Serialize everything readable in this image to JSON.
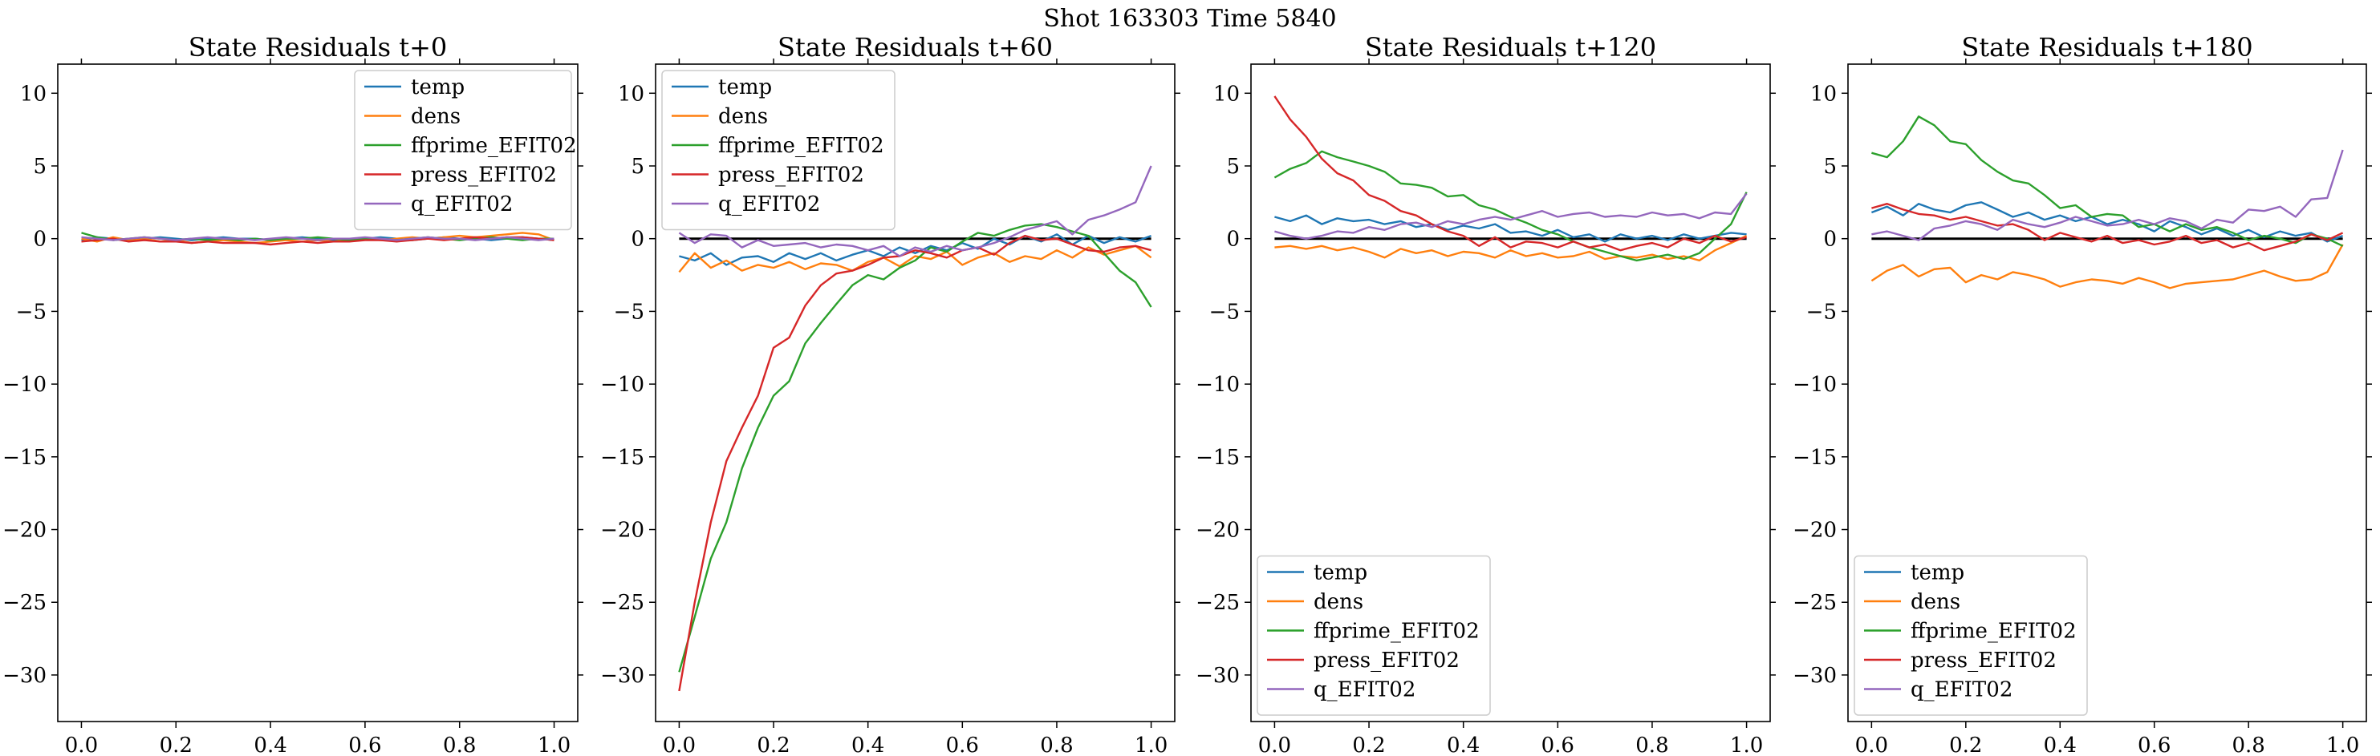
{
  "figure": {
    "title": "Shot 163303   Time 5840"
  },
  "colors": {
    "temp": "#1f77b4",
    "dens": "#ff7f0e",
    "ffprime_EFIT02": "#2ca02c",
    "press_EFIT02": "#d62728",
    "q_EFIT02": "#9467bd",
    "zero_line": "#000000"
  },
  "chart_data": [
    {
      "type": "line",
      "title": "State Residuals t+0",
      "xlim": [
        -0.05,
        1.05
      ],
      "ylim": [
        -33.2,
        12
      ],
      "xticks": [
        "0.0",
        "0.2",
        "0.4",
        "0.6",
        "0.8",
        "1.0"
      ],
      "yticks": [
        "10",
        "5",
        "0",
        "−5",
        "−10",
        "−15",
        "−20",
        "−25",
        "−30"
      ],
      "legend": "top-right",
      "zero_line": false,
      "x": [
        0,
        0.033,
        0.067,
        0.1,
        0.133,
        0.167,
        0.2,
        0.233,
        0.267,
        0.3,
        0.333,
        0.367,
        0.4,
        0.433,
        0.467,
        0.5,
        0.533,
        0.567,
        0.6,
        0.633,
        0.667,
        0.7,
        0.733,
        0.767,
        0.8,
        0.833,
        0.867,
        0.9,
        0.933,
        0.967,
        1.0
      ],
      "series": [
        {
          "name": "temp",
          "values": [
            -0.1,
            0.1,
            0.0,
            -0.1,
            0.0,
            0.1,
            0.0,
            -0.1,
            0.0,
            0.1,
            0.0,
            0.0,
            -0.1,
            0.0,
            0.1,
            0.0,
            -0.1,
            0.0,
            0.0,
            0.1,
            0.0,
            -0.1,
            0.0,
            0.1,
            0.0,
            0.0,
            -0.1,
            0.0,
            0.1,
            0.0,
            -0.1
          ]
        },
        {
          "name": "dens",
          "values": [
            0.0,
            -0.2,
            0.1,
            -0.1,
            0.0,
            -0.2,
            -0.1,
            -0.3,
            -0.2,
            -0.1,
            -0.2,
            -0.3,
            -0.2,
            -0.1,
            -0.2,
            -0.1,
            -0.2,
            -0.1,
            0.0,
            -0.1,
            0.0,
            0.1,
            0.0,
            0.1,
            0.2,
            0.1,
            0.2,
            0.3,
            0.4,
            0.3,
            -0.1
          ]
        },
        {
          "name": "ffprime_EFIT02",
          "values": [
            0.4,
            0.1,
            -0.1,
            0.0,
            0.1,
            0.0,
            -0.1,
            0.0,
            -0.1,
            0.0,
            -0.1,
            0.0,
            -0.1,
            0.0,
            0.0,
            0.1,
            0.0,
            -0.1,
            0.0,
            0.0,
            -0.1,
            0.0,
            0.1,
            0.0,
            -0.1,
            0.0,
            0.1,
            0.0,
            -0.1,
            0.0,
            0.0
          ]
        },
        {
          "name": "press_EFIT02",
          "values": [
            -0.2,
            -0.1,
            0.0,
            -0.2,
            -0.1,
            -0.2,
            -0.2,
            -0.3,
            -0.2,
            -0.3,
            -0.3,
            -0.3,
            -0.4,
            -0.3,
            -0.2,
            -0.3,
            -0.2,
            -0.2,
            -0.1,
            -0.1,
            -0.2,
            -0.1,
            0.0,
            -0.1,
            0.0,
            0.1,
            0.0,
            0.1,
            0.1,
            0.0,
            -0.1
          ]
        },
        {
          "name": "q_EFIT02",
          "values": [
            0.1,
            0.0,
            -0.1,
            0.0,
            0.1,
            0.0,
            -0.1,
            0.0,
            0.1,
            0.0,
            0.0,
            -0.1,
            0.0,
            0.1,
            0.0,
            -0.1,
            0.0,
            0.0,
            0.1,
            0.0,
            -0.1,
            0.0,
            0.1,
            0.0,
            0.0,
            -0.1,
            0.0,
            0.1,
            0.0,
            -0.1,
            0.0
          ]
        }
      ]
    },
    {
      "type": "line",
      "title": "State Residuals t+60",
      "xlim": [
        -0.05,
        1.05
      ],
      "ylim": [
        -33.2,
        12
      ],
      "xticks": [
        "0.0",
        "0.2",
        "0.4",
        "0.6",
        "0.8",
        "1.0"
      ],
      "yticks": [
        "10",
        "5",
        "0",
        "−5",
        "−10",
        "−15",
        "−20",
        "−25",
        "−30"
      ],
      "legend": "top-left",
      "zero_line": true,
      "x": [
        0,
        0.033,
        0.067,
        0.1,
        0.133,
        0.167,
        0.2,
        0.233,
        0.267,
        0.3,
        0.333,
        0.367,
        0.4,
        0.433,
        0.467,
        0.5,
        0.533,
        0.567,
        0.6,
        0.633,
        0.667,
        0.7,
        0.733,
        0.767,
        0.8,
        0.833,
        0.867,
        0.9,
        0.933,
        0.967,
        1.0
      ],
      "series": [
        {
          "name": "temp",
          "values": [
            -1.2,
            -1.5,
            -1.0,
            -1.8,
            -1.3,
            -1.2,
            -1.6,
            -1.0,
            -1.4,
            -1.0,
            -1.5,
            -1.1,
            -0.8,
            -1.2,
            -0.6,
            -1.0,
            -0.5,
            -0.8,
            -0.3,
            -0.7,
            0.0,
            -0.4,
            0.2,
            -0.2,
            0.3,
            -0.4,
            0.2,
            -0.3,
            0.1,
            -0.2,
            0.2
          ]
        },
        {
          "name": "dens",
          "values": [
            -2.3,
            -1.0,
            -2.0,
            -1.5,
            -2.2,
            -1.8,
            -2.0,
            -1.6,
            -2.1,
            -1.7,
            -1.8,
            -2.2,
            -1.6,
            -1.3,
            -1.9,
            -1.2,
            -1.4,
            -0.9,
            -1.8,
            -1.3,
            -1.0,
            -1.6,
            -1.2,
            -1.4,
            -0.8,
            -1.3,
            -0.6,
            -1.1,
            -0.8,
            -0.5,
            -1.3
          ]
        },
        {
          "name": "ffprime_EFIT02",
          "values": [
            -29.8,
            -26.0,
            -22.0,
            -19.5,
            -15.8,
            -13.0,
            -10.8,
            -9.8,
            -7.2,
            -5.8,
            -4.5,
            -3.2,
            -2.5,
            -2.8,
            -2.0,
            -1.5,
            -0.6,
            -0.9,
            -0.2,
            0.4,
            0.2,
            0.6,
            0.9,
            1.0,
            0.8,
            0.5,
            0.2,
            -1.0,
            -2.2,
            -3.0,
            -4.7
          ]
        },
        {
          "name": "press_EFIT02",
          "values": [
            -31.1,
            -25.0,
            -19.5,
            -15.3,
            -13.0,
            -10.8,
            -7.5,
            -6.8,
            -4.6,
            -3.2,
            -2.4,
            -2.2,
            -1.8,
            -1.3,
            -1.2,
            -0.8,
            -1.0,
            -1.3,
            -0.8,
            -0.6,
            -1.1,
            -0.3,
            0.2,
            -0.1,
            0.0,
            -0.4,
            -0.8,
            -0.9,
            -0.6,
            -0.5,
            -0.8
          ]
        },
        {
          "name": "q_EFIT02",
          "values": [
            0.4,
            -0.3,
            0.3,
            0.2,
            -0.6,
            -0.1,
            -0.5,
            -0.4,
            -0.3,
            -0.6,
            -0.4,
            -0.5,
            -0.8,
            -0.5,
            -1.2,
            -0.6,
            -0.9,
            -0.5,
            -0.8,
            -0.6,
            -0.3,
            0.1,
            0.6,
            0.9,
            1.2,
            0.3,
            1.3,
            1.6,
            2.0,
            2.5,
            5.0
          ]
        }
      ]
    },
    {
      "type": "line",
      "title": "State Residuals t+120",
      "xlim": [
        -0.05,
        1.05
      ],
      "ylim": [
        -33.2,
        12
      ],
      "xticks": [
        "0.0",
        "0.2",
        "0.4",
        "0.6",
        "0.8",
        "1.0"
      ],
      "yticks": [
        "10",
        "5",
        "0",
        "−5",
        "−10",
        "−15",
        "−20",
        "−25",
        "−30"
      ],
      "legend": "bottom-left",
      "zero_line": true,
      "x": [
        0,
        0.033,
        0.067,
        0.1,
        0.133,
        0.167,
        0.2,
        0.233,
        0.267,
        0.3,
        0.333,
        0.367,
        0.4,
        0.433,
        0.467,
        0.5,
        0.533,
        0.567,
        0.6,
        0.633,
        0.667,
        0.7,
        0.733,
        0.767,
        0.8,
        0.833,
        0.867,
        0.9,
        0.933,
        0.967,
        1.0
      ],
      "series": [
        {
          "name": "temp",
          "values": [
            1.5,
            1.2,
            1.6,
            1.0,
            1.4,
            1.2,
            1.3,
            1.0,
            1.2,
            0.8,
            1.0,
            0.6,
            0.9,
            0.7,
            1.0,
            0.4,
            0.5,
            0.2,
            0.6,
            0.1,
            0.3,
            -0.2,
            0.3,
            0.0,
            0.2,
            -0.1,
            0.3,
            0.0,
            0.2,
            0.4,
            0.3
          ]
        },
        {
          "name": "dens",
          "values": [
            -0.6,
            -0.5,
            -0.7,
            -0.5,
            -0.8,
            -0.6,
            -0.9,
            -1.3,
            -0.7,
            -1.0,
            -0.8,
            -1.2,
            -0.9,
            -1.0,
            -1.3,
            -0.8,
            -1.2,
            -1.0,
            -1.3,
            -1.2,
            -0.9,
            -1.4,
            -1.2,
            -1.3,
            -1.1,
            -1.4,
            -1.2,
            -1.5,
            -0.8,
            -0.3,
            0.2
          ]
        },
        {
          "name": "ffprime_EFIT02",
          "values": [
            4.2,
            4.8,
            5.2,
            6.0,
            5.6,
            5.3,
            5.0,
            4.6,
            3.8,
            3.7,
            3.5,
            2.9,
            3.0,
            2.3,
            2.0,
            1.5,
            1.1,
            0.6,
            0.3,
            -0.2,
            -0.6,
            -0.9,
            -1.2,
            -1.5,
            -1.3,
            -1.1,
            -1.4,
            -1.0,
            0.0,
            1.0,
            3.2
          ]
        },
        {
          "name": "press_EFIT02",
          "values": [
            9.8,
            8.2,
            7.0,
            5.5,
            4.5,
            4.0,
            3.0,
            2.6,
            1.9,
            1.6,
            1.0,
            0.5,
            0.2,
            -0.5,
            0.1,
            -0.6,
            -0.2,
            -0.3,
            -0.6,
            -0.2,
            -0.6,
            -0.4,
            -0.8,
            -0.5,
            -0.3,
            -0.6,
            0.0,
            -0.3,
            0.2,
            -0.2,
            0.1
          ]
        },
        {
          "name": "q_EFIT02",
          "values": [
            0.5,
            0.2,
            0.0,
            0.2,
            0.5,
            0.4,
            0.8,
            0.6,
            1.0,
            1.1,
            0.8,
            1.2,
            1.0,
            1.3,
            1.5,
            1.3,
            1.6,
            1.9,
            1.5,
            1.7,
            1.8,
            1.5,
            1.6,
            1.5,
            1.8,
            1.6,
            1.7,
            1.4,
            1.8,
            1.7,
            3.1
          ]
        }
      ]
    },
    {
      "type": "line",
      "title": "State Residuals t+180",
      "xlim": [
        -0.05,
        1.05
      ],
      "ylim": [
        -33.2,
        12
      ],
      "xticks": [
        "0.0",
        "0.2",
        "0.4",
        "0.6",
        "0.8",
        "1.0"
      ],
      "yticks": [
        "10",
        "5",
        "0",
        "−5",
        "−10",
        "−15",
        "−20",
        "−25",
        "−30"
      ],
      "legend": "bottom-left",
      "zero_line": true,
      "x": [
        0,
        0.033,
        0.067,
        0.1,
        0.133,
        0.167,
        0.2,
        0.233,
        0.267,
        0.3,
        0.333,
        0.367,
        0.4,
        0.433,
        0.467,
        0.5,
        0.533,
        0.567,
        0.6,
        0.633,
        0.667,
        0.7,
        0.733,
        0.767,
        0.8,
        0.833,
        0.867,
        0.9,
        0.933,
        0.967,
        1.0
      ],
      "series": [
        {
          "name": "temp",
          "values": [
            1.8,
            2.2,
            1.6,
            2.4,
            2.0,
            1.8,
            2.3,
            2.5,
            2.0,
            1.5,
            1.8,
            1.3,
            1.6,
            1.2,
            1.5,
            1.0,
            1.3,
            1.0,
            0.5,
            1.2,
            0.8,
            0.3,
            0.7,
            0.2,
            0.6,
            0.1,
            0.5,
            0.2,
            0.4,
            -0.2,
            0.2
          ]
        },
        {
          "name": "dens",
          "values": [
            -2.9,
            -2.2,
            -1.8,
            -2.6,
            -2.1,
            -2.0,
            -3.0,
            -2.5,
            -2.8,
            -2.3,
            -2.5,
            -2.8,
            -3.3,
            -3.0,
            -2.8,
            -2.9,
            -3.1,
            -2.7,
            -3.0,
            -3.4,
            -3.1,
            -3.0,
            -2.9,
            -2.8,
            -2.5,
            -2.2,
            -2.6,
            -2.9,
            -2.8,
            -2.3,
            -0.4
          ]
        },
        {
          "name": "ffprime_EFIT02",
          "values": [
            5.9,
            5.6,
            6.7,
            8.4,
            7.8,
            6.7,
            6.5,
            5.4,
            4.6,
            4.0,
            3.8,
            3.0,
            2.1,
            2.3,
            1.5,
            1.7,
            1.6,
            0.8,
            1.0,
            0.5,
            1.0,
            0.6,
            0.8,
            0.4,
            -0.1,
            0.2,
            0.0,
            -0.3,
            0.3,
            0.0,
            -0.5
          ]
        },
        {
          "name": "press_EFIT02",
          "values": [
            2.1,
            2.4,
            2.0,
            1.7,
            1.6,
            1.3,
            1.5,
            1.2,
            0.9,
            1.0,
            0.6,
            -0.1,
            0.4,
            0.1,
            -0.2,
            0.2,
            -0.3,
            -0.1,
            -0.4,
            -0.2,
            0.2,
            -0.3,
            -0.1,
            -0.6,
            -0.3,
            -0.8,
            -0.5,
            -0.2,
            0.3,
            -0.1,
            0.4
          ]
        },
        {
          "name": "q_EFIT02",
          "values": [
            0.3,
            0.5,
            0.2,
            -0.1,
            0.7,
            0.9,
            1.2,
            1.0,
            0.6,
            1.3,
            1.0,
            0.8,
            1.1,
            1.5,
            1.2,
            0.9,
            1.0,
            1.3,
            1.0,
            1.4,
            1.2,
            0.7,
            1.3,
            1.1,
            2.0,
            1.9,
            2.2,
            1.5,
            2.7,
            2.8,
            6.1
          ]
        }
      ]
    }
  ]
}
